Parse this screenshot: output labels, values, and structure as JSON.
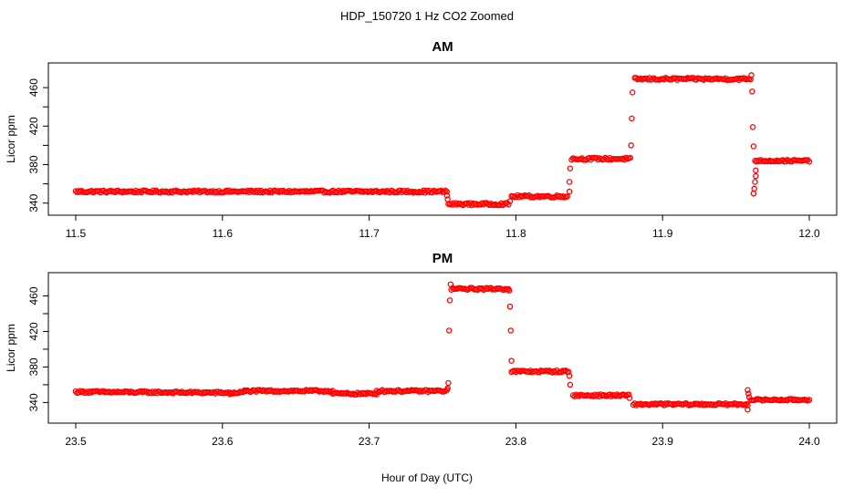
{
  "page_title": "HDP_150720  1 Hz CO2 Zoomed",
  "xlabel": "Hour of Day (UTC)",
  "colors": {
    "points": "#ff0000",
    "axes": "#000000",
    "background": "#ffffff"
  },
  "chart_data": [
    {
      "type": "scatter",
      "title": "AM",
      "xlabel": "",
      "ylabel": "Licor ppm",
      "xlim": [
        11.5,
        12.0
      ],
      "ylim": [
        335,
        480
      ],
      "xticks": [
        11.5,
        11.6,
        11.7,
        11.8,
        11.9,
        12.0
      ],
      "xtick_labels": [
        "11.5",
        "11.6",
        "11.7",
        "11.8",
        "11.9",
        "12.0"
      ],
      "yticks": [
        340,
        380,
        420,
        460
      ],
      "ytick_labels": [
        "340",
        "380",
        "420",
        "460"
      ],
      "grid": false,
      "segments": [
        {
          "x": [
            11.5,
            11.753
          ],
          "y": [
            352,
            352
          ],
          "noise": 1.2
        },
        {
          "x": [
            11.754,
            11.795
          ],
          "y": [
            339,
            339
          ],
          "noise": 1.2
        },
        {
          "x": [
            11.797,
            11.835
          ],
          "y": [
            347,
            347
          ],
          "noise": 1.2
        },
        {
          "x": [
            11.838,
            11.878
          ],
          "y": [
            386,
            386
          ],
          "noise": 1.2
        },
        {
          "x": [
            11.881,
            11.96
          ],
          "y": [
            469,
            469
          ],
          "noise": 1.2
        },
        {
          "x": [
            11.963,
            12.0
          ],
          "y": [
            384,
            384
          ],
          "noise": 1.0
        }
      ],
      "points": [
        {
          "x": 11.753,
          "y": 348
        },
        {
          "x": 11.7535,
          "y": 344
        },
        {
          "x": 11.796,
          "y": 342
        },
        {
          "x": 11.8365,
          "y": 352
        },
        {
          "x": 11.8365,
          "y": 362
        },
        {
          "x": 11.837,
          "y": 376
        },
        {
          "x": 11.8785,
          "y": 400
        },
        {
          "x": 11.879,
          "y": 428
        },
        {
          "x": 11.8795,
          "y": 455
        },
        {
          "x": 11.9605,
          "y": 473
        },
        {
          "x": 11.961,
          "y": 456
        },
        {
          "x": 11.9615,
          "y": 419
        },
        {
          "x": 11.962,
          "y": 399
        },
        {
          "x": 11.962,
          "y": 350
        },
        {
          "x": 11.9625,
          "y": 355
        },
        {
          "x": 11.963,
          "y": 362
        },
        {
          "x": 11.9635,
          "y": 368
        },
        {
          "x": 11.9635,
          "y": 374
        }
      ]
    },
    {
      "type": "scatter",
      "title": "PM",
      "xlabel": "",
      "ylabel": "Licor ppm",
      "xlim": [
        23.5,
        24.0
      ],
      "ylim": [
        325,
        480
      ],
      "xticks": [
        23.5,
        23.6,
        23.7,
        23.8,
        23.9,
        24.0
      ],
      "xtick_labels": [
        "23.5",
        "23.6",
        "23.7",
        "23.8",
        "23.9",
        "24.0"
      ],
      "yticks": [
        340,
        380,
        420,
        460
      ],
      "ytick_labels": [
        "340",
        "380",
        "420",
        "460"
      ],
      "grid": false,
      "segments": [
        {
          "x": [
            23.5,
            23.605
          ],
          "y": [
            352,
            351
          ],
          "noise": 1.2
        },
        {
          "x": [
            23.605,
            23.615
          ],
          "y": [
            350,
            352
          ],
          "noise": 1.0
        },
        {
          "x": [
            23.615,
            23.675
          ],
          "y": [
            353,
            353
          ],
          "noise": 1.2
        },
        {
          "x": [
            23.675,
            23.705
          ],
          "y": [
            350,
            350
          ],
          "noise": 1.2
        },
        {
          "x": [
            23.705,
            23.753
          ],
          "y": [
            353,
            353
          ],
          "noise": 1.2
        },
        {
          "x": [
            23.756,
            23.795
          ],
          "y": [
            468,
            468
          ],
          "noise": 1.2
        },
        {
          "x": [
            23.797,
            23.836
          ],
          "y": [
            375,
            375
          ],
          "noise": 1.2
        },
        {
          "x": [
            23.839,
            23.877
          ],
          "y": [
            348,
            348
          ],
          "noise": 1.2
        },
        {
          "x": [
            23.88,
            23.958
          ],
          "y": [
            338,
            338
          ],
          "noise": 1.2
        },
        {
          "x": [
            23.96,
            24.0
          ],
          "y": [
            343,
            343
          ],
          "noise": 1.0
        }
      ],
      "points": [
        {
          "x": 23.7535,
          "y": 356
        },
        {
          "x": 23.754,
          "y": 362
        },
        {
          "x": 23.7545,
          "y": 421
        },
        {
          "x": 23.755,
          "y": 455
        },
        {
          "x": 23.7555,
          "y": 473
        },
        {
          "x": 23.7955,
          "y": 466
        },
        {
          "x": 23.796,
          "y": 448
        },
        {
          "x": 23.7965,
          "y": 421
        },
        {
          "x": 23.797,
          "y": 387
        },
        {
          "x": 23.8365,
          "y": 370
        },
        {
          "x": 23.837,
          "y": 360
        },
        {
          "x": 23.8775,
          "y": 345
        },
        {
          "x": 23.958,
          "y": 354
        },
        {
          "x": 23.958,
          "y": 332
        },
        {
          "x": 23.9585,
          "y": 350
        },
        {
          "x": 23.959,
          "y": 346
        }
      ]
    }
  ]
}
